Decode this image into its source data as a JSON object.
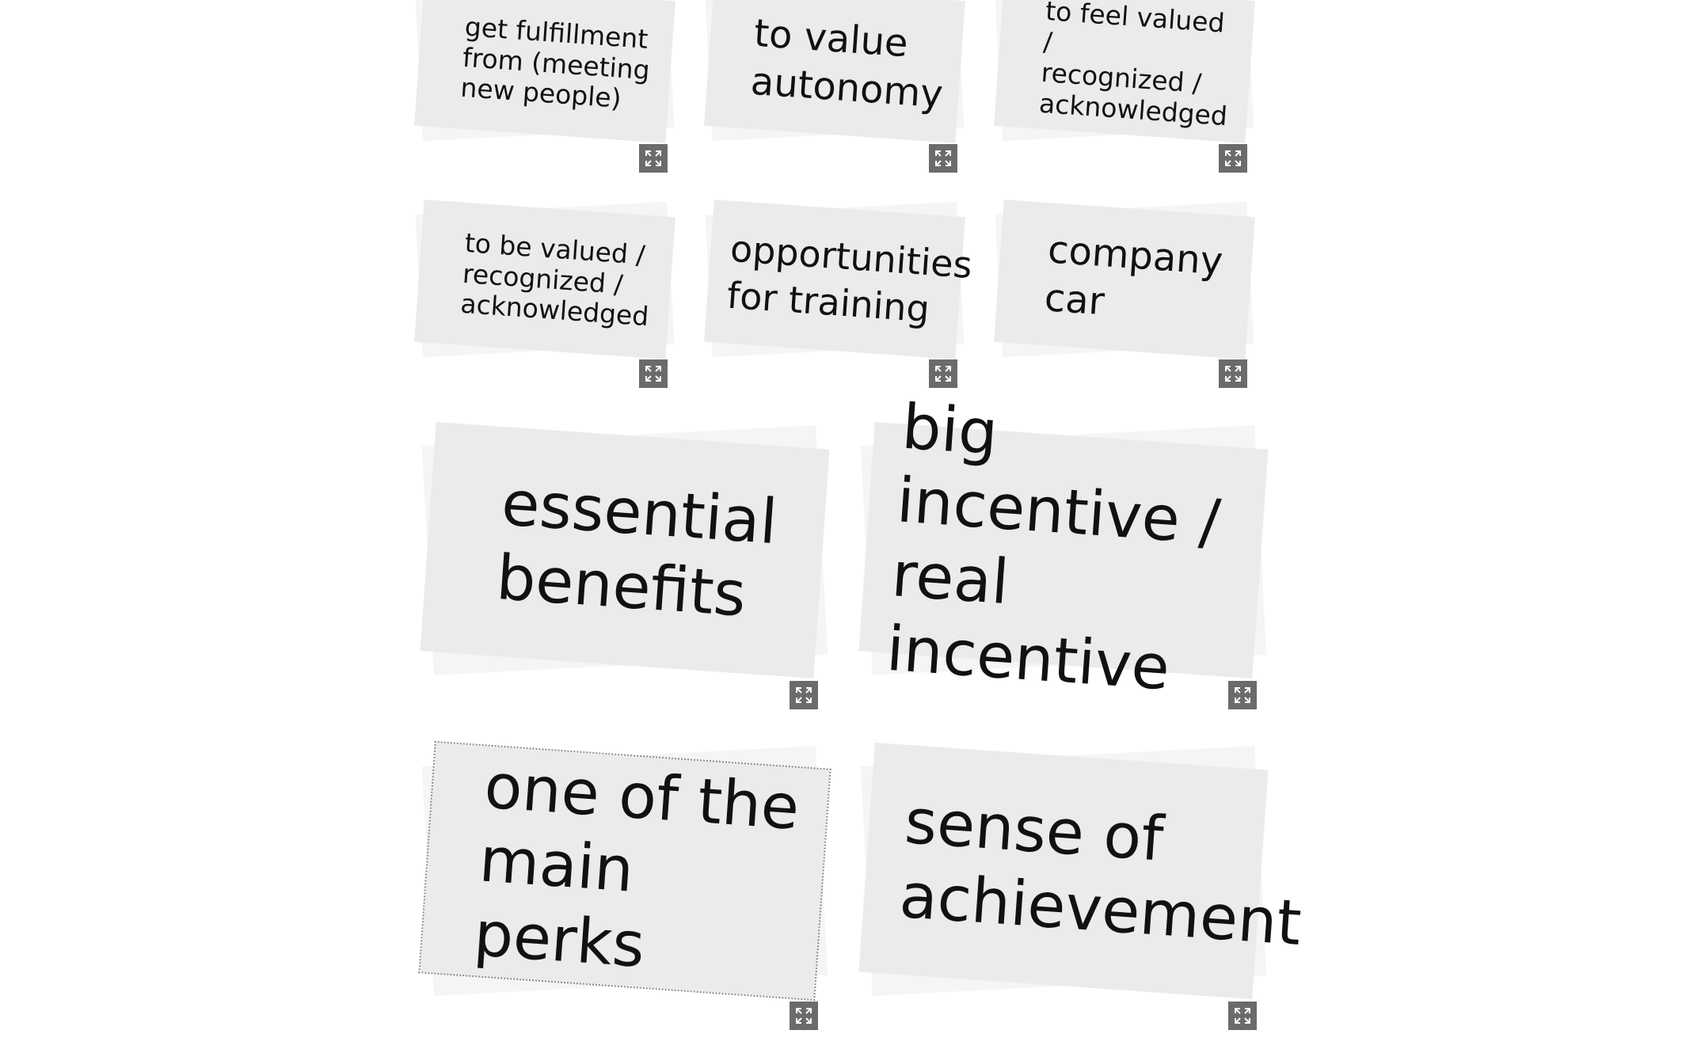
{
  "cards": [
    {
      "text": "get fulfillment\nfrom (meeting\nnew people)",
      "icon": "expand-icon"
    },
    {
      "text": "to value\nautonomy",
      "icon": "expand-icon"
    },
    {
      "text": "to feel valued /\nrecognized /\nacknowledged",
      "icon": "expand-icon"
    },
    {
      "text": "to be valued /\nrecognized /\nacknowledged",
      "icon": "expand-icon"
    },
    {
      "text": "opportunities\nfor training",
      "icon": "expand-icon"
    },
    {
      "text": "company\ncar",
      "icon": "expand-icon"
    },
    {
      "text": "essential\nbenefits",
      "icon": "expand-icon"
    },
    {
      "text": "big incentive /\nreal incentive",
      "icon": "expand-icon"
    },
    {
      "text": "one of the\nmain perks",
      "icon": "expand-icon",
      "selected": true
    },
    {
      "text": "sense of\nachievement",
      "icon": "expand-icon"
    }
  ],
  "colors": {
    "card": "#ebebeb",
    "card_shadow": "#f5f5f5",
    "button": "#6b6b6b",
    "text": "#111111"
  }
}
